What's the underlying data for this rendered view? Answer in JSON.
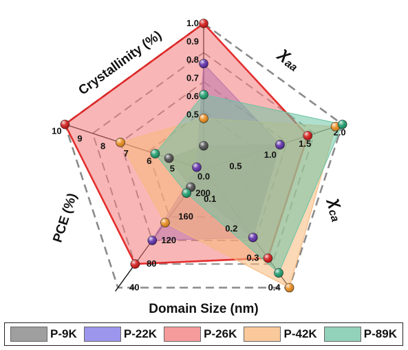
{
  "chart_data": {
    "type": "radar",
    "axes": [
      {
        "key": "crystallinity",
        "label": "Crystallinity (%)",
        "min": 0.2,
        "max": 1.0,
        "reverse": false,
        "ticks": [
          {
            "v": 0.5,
            "t": "0.5"
          },
          {
            "v": 0.6,
            "t": "0.6"
          },
          {
            "v": 0.7,
            "t": "0.7"
          },
          {
            "v": 0.8,
            "t": "0.8"
          },
          {
            "v": 0.9,
            "t": "0.9"
          },
          {
            "v": 1.0,
            "t": "1.0"
          }
        ]
      },
      {
        "key": "chi_aa",
        "label": "χaa",
        "label_main": "χ",
        "label_sub": "aa",
        "min": 0.0,
        "max": 2.0,
        "reverse": false,
        "ticks": [
          {
            "v": 0.0,
            "t": "0.0"
          },
          {
            "v": 0.5,
            "t": "0.5"
          },
          {
            "v": 1.0,
            "t": "1.0"
          },
          {
            "v": 1.5,
            "t": "1.5"
          },
          {
            "v": 2.0,
            "t": "2.0"
          }
        ]
      },
      {
        "key": "chi_ca",
        "label": "χca",
        "label_main": "χ",
        "label_sub": "ca",
        "min": 0.0,
        "max": 0.4,
        "reverse": false,
        "ticks": [
          {
            "v": 0.1,
            "t": "0.1"
          },
          {
            "v": 0.2,
            "t": "0.2"
          },
          {
            "v": 0.3,
            "t": "0.3"
          },
          {
            "v": 0.4,
            "t": "0.4"
          }
        ]
      },
      {
        "key": "domain_size",
        "label": "Domain Size (nm)",
        "min": 240,
        "max": 40,
        "reverse": true,
        "ticks": [
          {
            "v": 200,
            "t": "200"
          },
          {
            "v": 160,
            "t": "160"
          },
          {
            "v": 120,
            "t": "120"
          },
          {
            "v": 80,
            "t": "80"
          },
          {
            "v": 40,
            "t": "40"
          }
        ]
      },
      {
        "key": "pce",
        "label": "PCE (%)",
        "min": 4,
        "max": 10,
        "reverse": false,
        "ticks": [
          {
            "v": 5,
            "t": "5"
          },
          {
            "v": 6,
            "t": "6"
          },
          {
            "v": 7,
            "t": "7"
          },
          {
            "v": 8,
            "t": "8"
          },
          {
            "v": 9,
            "t": "9"
          },
          {
            "v": 10,
            "t": "10"
          }
        ]
      }
    ],
    "series": [
      {
        "name": "P-9K",
        "color": "#808080",
        "marker": "#4a4a4a",
        "values": [
          0.33,
          1.1,
          0.23,
          210,
          5.5
        ]
      },
      {
        "name": "P-22K",
        "color": "#7b73e6",
        "marker": "#5b2aa6",
        "values": [
          0.78,
          1.1,
          0.23,
          120,
          4.3
        ]
      },
      {
        "name": "P-26K",
        "color": "#f27a7a",
        "marker": "#d01414",
        "values": [
          1.0,
          1.5,
          0.3,
          80,
          10.0
        ]
      },
      {
        "name": "P-42K",
        "color": "#f7b87a",
        "marker": "#e88a1a",
        "values": [
          0.48,
          1.9,
          0.4,
          150,
          7.6
        ]
      },
      {
        "name": "P-89K",
        "color": "#6ec4a4",
        "marker": "#1a9a6a",
        "values": [
          0.61,
          2.0,
          0.35,
          200,
          6.1
        ]
      }
    ],
    "legend_position": "bottom",
    "grid": true
  }
}
